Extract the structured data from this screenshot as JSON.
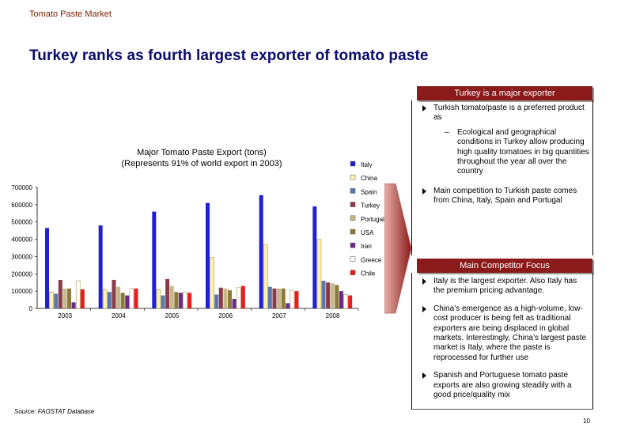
{
  "header": {
    "section": "Tomato Paste Market",
    "title": "Turkey ranks as fourth largest exporter of tomato paste"
  },
  "panel1": {
    "header": "Turkey is a major exporter",
    "bullet1": "Turkish tomato/paste is a preferred product as",
    "bullet1_sub": "Ecological and geographical conditions in Turkey allow producing high quality tomatoes in big quantities throughout the year all over the country",
    "bullet2": "Main competition to Turkish paste comes from China, Italy, Spain and Portugal"
  },
  "panel2": {
    "header": "Main Competitor Focus",
    "bullets": [
      "Italy is the largest exporter. Also Italy has the premium pricing advantage.",
      "China’s emergence as a high-volume, low-cost producer is being felt as traditional exporters are being displaced in global markets. Interestingly, China’s largest paste market is Italy, where the paste is reprocessed for further use",
      "Spanish and Portuguese tomato paste exports are also growing steadily with a good price/quality mix"
    ]
  },
  "footer": {
    "source": "Source:  FAOSTAT Database",
    "page_number": "10"
  },
  "chart_data": {
    "type": "bar",
    "title_line1": "Major Tomato Paste Export (tons)",
    "title_line2": "(Represents 91% of world export in 2003)",
    "categories": [
      "2003",
      "2004",
      "2005",
      "2006",
      "2007",
      "2008"
    ],
    "ylim": [
      0,
      700000
    ],
    "yticks": [
      "0",
      "100000",
      "200000",
      "300000",
      "400000",
      "500000",
      "600000",
      "700000"
    ],
    "grid": false,
    "legend_position": "right",
    "series": [
      {
        "name": "Italy",
        "color": "#1f1fd6",
        "values": [
          465000,
          480000,
          560000,
          610000,
          655000,
          590000
        ]
      },
      {
        "name": "China",
        "color": "#fff2b0",
        "values": [
          95000,
          110000,
          110000,
          295000,
          370000,
          400000
        ]
      },
      {
        "name": "Spain",
        "color": "#5b79a8",
        "values": [
          85000,
          95000,
          75000,
          80000,
          125000,
          160000
        ]
      },
      {
        "name": "Turkey",
        "color": "#8b3a4a",
        "values": [
          165000,
          165000,
          170000,
          120000,
          115000,
          150000
        ]
      },
      {
        "name": "Portugal",
        "color": "#c8b98a",
        "values": [
          115000,
          125000,
          130000,
          115000,
          115000,
          145000
        ]
      },
      {
        "name": "USA",
        "color": "#8c7a3a",
        "values": [
          115000,
          90000,
          95000,
          105000,
          115000,
          135000
        ]
      },
      {
        "name": "Iran",
        "color": "#6a2a8a",
        "values": [
          35000,
          75000,
          90000,
          55000,
          30000,
          100000
        ]
      },
      {
        "name": "Greece",
        "color": "#ffffff",
        "values": [
          160000,
          115000,
          95000,
          120000,
          105000,
          80000
        ]
      },
      {
        "name": "Chile",
        "color": "#e81c1c",
        "values": [
          110000,
          115000,
          90000,
          130000,
          100000,
          75000
        ]
      }
    ]
  }
}
